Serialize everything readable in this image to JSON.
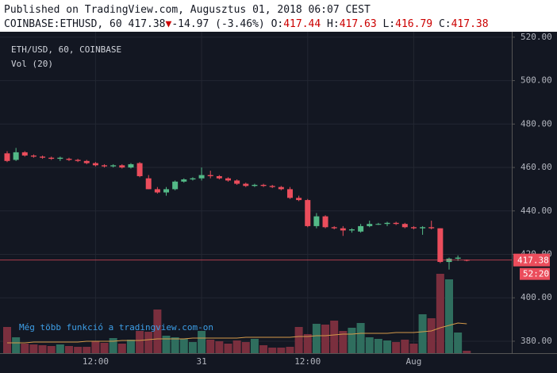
{
  "header": {
    "published": "Published on TradingView.com, Augusztus 01, 2018 06:07 CEST",
    "symbol": "COINBASE:ETHUSD, 60",
    "change": "-14.97 (-3.46%)",
    "o_label": "O:",
    "h_label": "H:",
    "l_label": "L:",
    "c_label": "C:"
  },
  "chart_data": {
    "type": "candlestick",
    "legend": "ETH/USD, 60, COINBASE",
    "volume_legend": "Vol (20)",
    "watermark": "Még több funkció a tradingview.com-on",
    "countdown": "52:20",
    "categories": [
      null,
      null,
      null,
      null,
      null,
      null,
      null,
      null,
      null,
      null,
      "12:00",
      null,
      null,
      null,
      null,
      null,
      null,
      null,
      null,
      null,
      null,
      null,
      "31",
      null,
      null,
      null,
      null,
      null,
      null,
      null,
      null,
      null,
      null,
      null,
      "12:00",
      null,
      null,
      null,
      null,
      null,
      null,
      null,
      null,
      null,
      null,
      null,
      "Aug",
      null,
      null,
      null,
      null,
      null,
      null
    ],
    "open": [
      466.5,
      463.5,
      467,
      465.5,
      465,
      464.5,
      464,
      464,
      463.5,
      463,
      462,
      461,
      460.5,
      461,
      460,
      462,
      455,
      450,
      448.5,
      450,
      453.5,
      454.5,
      455,
      456.5,
      456,
      455,
      454,
      452.5,
      451.5,
      452,
      451.5,
      451,
      450,
      446,
      445,
      433,
      437.5,
      432.5,
      432,
      431,
      430.5,
      433,
      434,
      434,
      434.5,
      434,
      432.5,
      432,
      432.5,
      432,
      416.5,
      418,
      417.44
    ],
    "high": [
      467.5,
      469,
      467.5,
      466,
      465.5,
      465,
      465,
      464.5,
      464,
      463.5,
      462.5,
      461.5,
      461.5,
      461.5,
      462,
      462.5,
      456.5,
      451,
      451,
      454,
      455,
      455.5,
      460,
      458.5,
      456.5,
      455.5,
      454.5,
      453,
      452.5,
      452.5,
      452,
      451.5,
      451,
      447,
      445.5,
      439,
      438,
      433,
      433,
      432,
      434,
      435.5,
      434.5,
      435,
      435,
      434.5,
      433,
      433,
      435.5,
      432,
      418.5,
      419.5,
      417.63
    ],
    "low": [
      462.5,
      463,
      465,
      464.5,
      464,
      463.5,
      463,
      463,
      462.5,
      461.5,
      460.5,
      460,
      460,
      459.5,
      459.5,
      455.5,
      450,
      448,
      447,
      449.5,
      453,
      454,
      454,
      455,
      454.5,
      453.5,
      452,
      451,
      451,
      451,
      450.5,
      449.5,
      445.5,
      444.5,
      432.5,
      432,
      432,
      431.5,
      428.5,
      430,
      430,
      432.5,
      433.5,
      433,
      433.5,
      432,
      431.5,
      429,
      431.5,
      416,
      413,
      417,
      416.79
    ],
    "close": [
      463,
      467,
      465.5,
      465,
      464.5,
      464,
      464.5,
      463.5,
      463,
      462,
      461,
      460.5,
      461,
      460,
      461.5,
      456,
      450,
      448.5,
      450,
      453.5,
      454.5,
      455,
      456.5,
      456,
      455,
      454,
      452.5,
      451.5,
      452,
      451.5,
      451,
      450,
      446,
      445,
      433,
      437.5,
      432.5,
      432,
      431,
      431.5,
      433,
      434,
      434,
      434.5,
      434,
      432.5,
      432,
      432.5,
      432,
      416.5,
      418,
      418.5,
      417.38
    ],
    "volume": [
      33,
      20,
      12,
      11,
      10,
      9,
      11,
      9,
      8,
      8,
      15,
      13,
      19,
      12,
      17,
      28,
      27,
      55,
      22,
      20,
      18,
      14,
      28,
      17,
      15,
      12,
      16,
      14,
      18,
      10,
      7,
      7,
      8,
      33,
      24,
      37,
      36,
      41,
      28,
      32,
      38,
      20,
      18,
      16,
      14,
      17,
      12,
      49,
      44,
      100,
      93,
      26,
      3
    ],
    "volume_ma": [
      13,
      13,
      13,
      14,
      14,
      14,
      14,
      14,
      14,
      15,
      15,
      15,
      15,
      16,
      16,
      16,
      17,
      18,
      18,
      18,
      18,
      19,
      19,
      19,
      19,
      19,
      19,
      20,
      20,
      20,
      20,
      20,
      20,
      21,
      21,
      22,
      22,
      23,
      24,
      24,
      25,
      25,
      25,
      25,
      26,
      26,
      26,
      27,
      28,
      32,
      35,
      38,
      37
    ],
    "up_color": "#53b987",
    "down_color": "#eb4d5c",
    "volume_up_color": "#2f6e5e",
    "volume_down_color": "#7a2f3e",
    "volume_ma_color": "#d49a4a",
    "ylim": [
      374.5,
      522.5
    ],
    "yticks": [
      {
        "value": 380,
        "label": "380.00"
      },
      {
        "value": 400,
        "label": "400.00"
      },
      {
        "value": 420,
        "label": "420.00"
      },
      {
        "value": 440,
        "label": "440.00"
      },
      {
        "value": 460,
        "label": "460.00"
      },
      {
        "value": 480,
        "label": "480.00"
      },
      {
        "value": 500,
        "label": "500.00"
      },
      {
        "value": 520,
        "label": "520.00"
      }
    ],
    "grid": true
  }
}
